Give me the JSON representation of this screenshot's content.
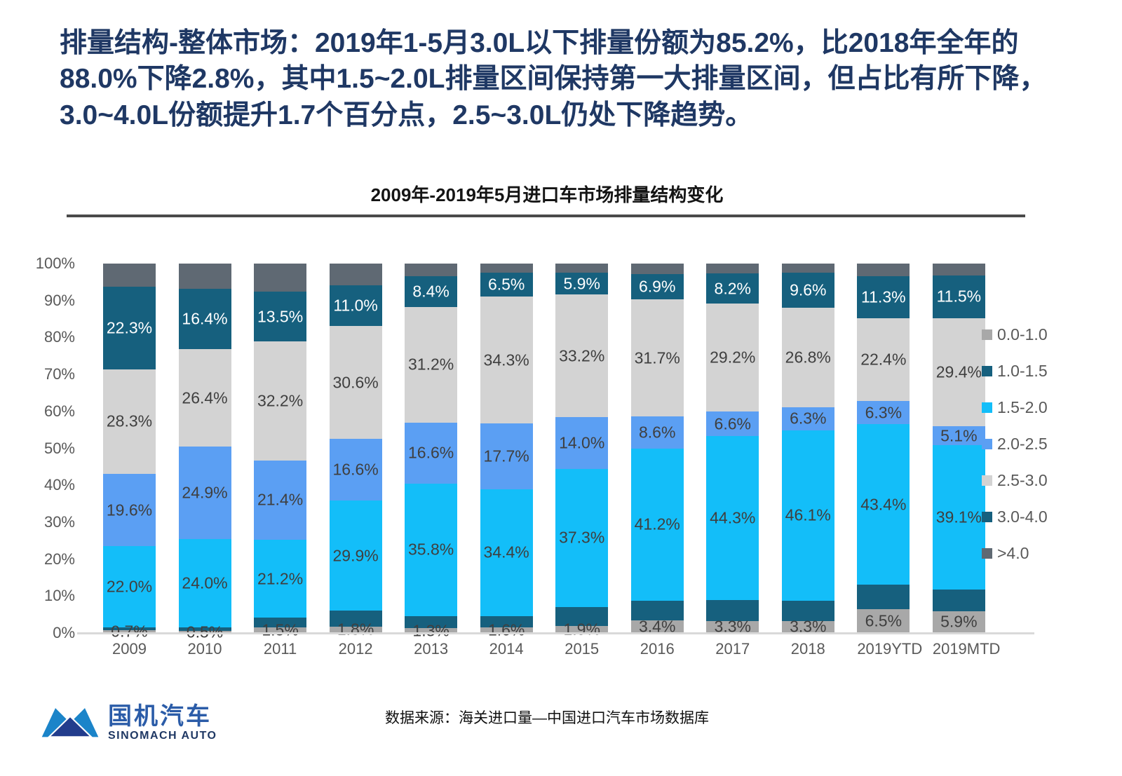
{
  "headline": "排量结构-整体市场：2019年1-5月3.0L以下排量份额为85.2%，比2018年全年的88.0%下降2.8%，其中1.5~2.0L排量区间保持第一大排量区间，但占比有所下降，3.0~4.0L份额提升1.7个百分点，2.5~3.0L仍处下降趋势。",
  "chart_data": {
    "type": "bar",
    "stacked": true,
    "title": "2009年-2019年5月进口车市场排量结构变化",
    "categories": [
      "2009",
      "2010",
      "2011",
      "2012",
      "2013",
      "2014",
      "2015",
      "2016",
      "2017",
      "2018",
      "2019YTD",
      "2019MTD"
    ],
    "series": [
      {
        "name": "0.0-1.0",
        "color": "#A8A8A8",
        "labeled": true,
        "values": [
          0.7,
          0.5,
          1.5,
          1.8,
          1.3,
          1.6,
          1.9,
          3.4,
          3.3,
          3.3,
          6.5,
          5.9
        ]
      },
      {
        "name": "1.0-1.5",
        "color": "#16607E",
        "labeled": false,
        "values": [
          0.8,
          1.0,
          2.6,
          4.2,
          3.3,
          3.0,
          5.2,
          5.4,
          5.7,
          5.5,
          6.6,
          5.8
        ]
      },
      {
        "name": "1.5-2.0",
        "color": "#13BEF9",
        "labeled": true,
        "values": [
          22.0,
          24.0,
          21.2,
          29.9,
          35.8,
          34.4,
          37.3,
          41.2,
          44.3,
          46.1,
          43.4,
          39.1
        ]
      },
      {
        "name": "2.0-2.5",
        "color": "#5B9FF3",
        "labeled": true,
        "values": [
          19.6,
          24.9,
          21.4,
          16.6,
          16.6,
          17.7,
          14.0,
          8.6,
          6.6,
          6.3,
          6.3,
          5.1
        ]
      },
      {
        "name": "2.5-3.0",
        "color": "#D3D3D3",
        "labeled": true,
        "values": [
          28.3,
          26.4,
          32.2,
          30.6,
          31.2,
          34.3,
          33.2,
          31.7,
          29.2,
          26.8,
          22.4,
          29.4
        ]
      },
      {
        "name": "3.0-4.0",
        "color": "#16607E",
        "labeled": true,
        "label_color": "#FFFFFF",
        "values": [
          22.3,
          16.4,
          13.5,
          11.0,
          8.4,
          6.5,
          5.9,
          6.9,
          8.2,
          9.6,
          11.3,
          11.5
        ]
      },
      {
        "name": ">4.0",
        "color": "#5F6973",
        "labeled": false,
        "values": [
          6.3,
          6.8,
          7.6,
          5.9,
          3.4,
          2.5,
          2.5,
          2.8,
          2.7,
          2.4,
          3.5,
          3.2
        ]
      }
    ],
    "y_ticks": [
      100,
      90,
      80,
      70,
      60,
      50,
      40,
      30,
      20,
      10,
      0
    ],
    "y_tick_suffix": "%",
    "ylim": [
      0,
      100
    ],
    "grid": false,
    "legend_position": "right",
    "note": "1.0-1.5 and >4.0 segment values are unlabeled in the original and estimated from bar heights"
  },
  "footer": {
    "source": "数据来源：海关进口量—中国进口汽车市场数据库",
    "logo_cn": "国机汽车",
    "logo_en": "SINOMACH AUTO"
  }
}
